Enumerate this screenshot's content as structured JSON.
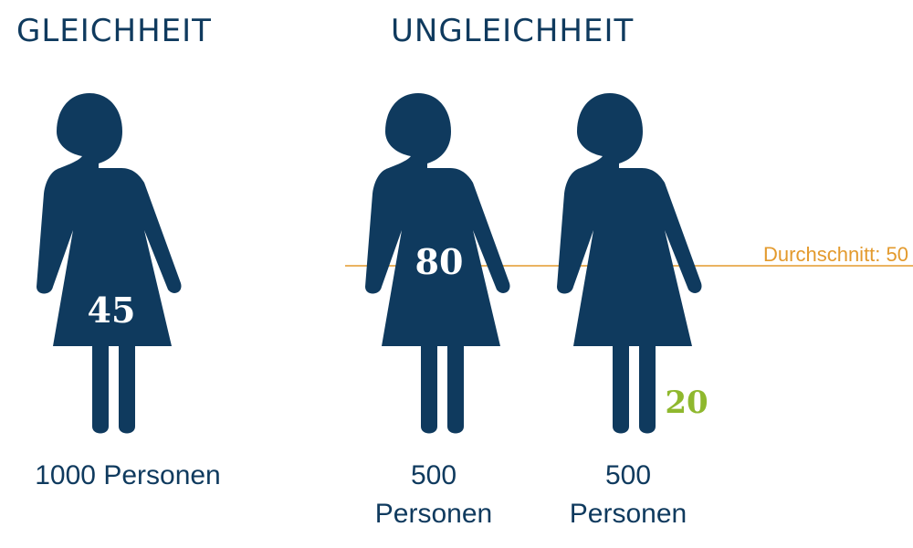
{
  "headings": {
    "equality": "GLEICHHEIT",
    "inequality": "UNGLEICHHEIT"
  },
  "figures": [
    {
      "group": "equality",
      "value": "45",
      "fill_fraction": 0.45,
      "caption": "1000 Personen"
    },
    {
      "group": "inequality",
      "value": "80",
      "fill_fraction": 0.8,
      "caption_line1": "500",
      "caption_line2": "Personen"
    },
    {
      "group": "inequality",
      "value": "20",
      "fill_fraction": 0.2,
      "caption_line1": "500",
      "caption_line2": "Personen"
    }
  ],
  "average": {
    "label": "Durchschnitt: 50",
    "value": 50
  },
  "colors": {
    "figure_dark": "#0f3a5e",
    "fill_green": "#9bc53d",
    "fill_green_light": "#dbe8bd",
    "average_line": "#e39a2d",
    "value_text_light": "#ffffff",
    "value_text_green": "#8fb82e"
  },
  "icons": [
    "woman-figure-icon"
  ]
}
